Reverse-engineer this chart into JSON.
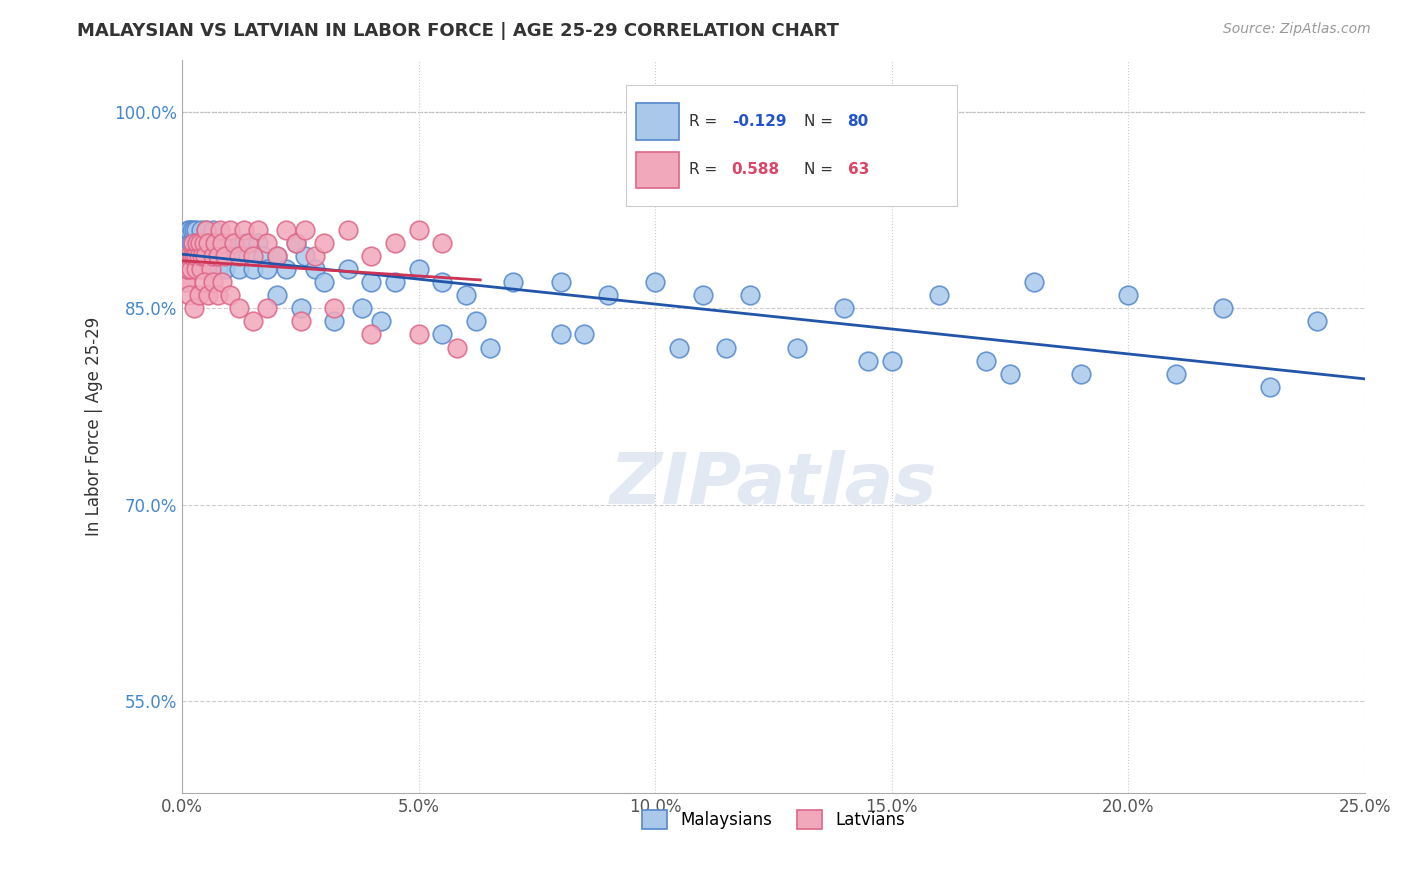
{
  "title": "MALAYSIAN VS LATVIAN IN LABOR FORCE | AGE 25-29 CORRELATION CHART",
  "source": "Source: ZipAtlas.com",
  "ylabel": "In Labor Force | Age 25-29",
  "xlim": [
    0.0,
    25.0
  ],
  "ylim": [
    48.0,
    104.0
  ],
  "xticks": [
    0.0,
    5.0,
    10.0,
    15.0,
    20.0,
    25.0
  ],
  "yticks": [
    55.0,
    70.0,
    85.0,
    100.0
  ],
  "xtick_labels": [
    "0.0%",
    "5.0%",
    "10.0%",
    "15.0%",
    "20.0%",
    "25.0%"
  ],
  "ytick_labels": [
    "55.0%",
    "70.0%",
    "85.0%",
    "100.0%"
  ],
  "top_dotted_y": 100.0,
  "malaysian_color": "#aac9ea",
  "latvian_color": "#f2a8bb",
  "malaysian_edge": "#5588cc",
  "latvian_edge": "#dd6688",
  "trend_blue": "#2255aa",
  "trend_pink": "#cc3355",
  "R_malaysian": -0.129,
  "N_malaysian": 80,
  "R_latvian": 0.588,
  "N_latvian": 63,
  "legend_labels": [
    "Malaysians",
    "Latvians"
  ],
  "watermark": "ZIPatlas",
  "malaysian_x": [
    0.05,
    0.08,
    0.1,
    0.12,
    0.15,
    0.18,
    0.2,
    0.22,
    0.25,
    0.28,
    0.3,
    0.32,
    0.35,
    0.38,
    0.4,
    0.42,
    0.45,
    0.48,
    0.5,
    0.55,
    0.6,
    0.65,
    0.7,
    0.75,
    0.8,
    0.85,
    0.9,
    1.0,
    1.1,
    1.2,
    1.3,
    1.4,
    1.5,
    1.6,
    1.7,
    1.8,
    2.0,
    2.2,
    2.4,
    2.6,
    2.8,
    3.0,
    3.5,
    4.0,
    4.5,
    5.0,
    5.5,
    6.0,
    7.0,
    8.0,
    9.0,
    10.0,
    11.0,
    12.0,
    14.0,
    16.0,
    18.0,
    20.0,
    22.0,
    24.0,
    2.5,
    3.2,
    4.2,
    5.5,
    6.5,
    8.5,
    10.5,
    13.0,
    15.0,
    17.0,
    19.0,
    21.0,
    23.0,
    2.0,
    3.8,
    6.2,
    8.0,
    11.5,
    14.5,
    17.5
  ],
  "malaysian_y": [
    88,
    89,
    90,
    91,
    91,
    90,
    91,
    90,
    91,
    90,
    91,
    90,
    90,
    89,
    91,
    90,
    88,
    90,
    91,
    89,
    90,
    91,
    89,
    88,
    90,
    89,
    88,
    90,
    89,
    88,
    90,
    89,
    88,
    90,
    89,
    88,
    89,
    88,
    90,
    89,
    88,
    87,
    88,
    87,
    87,
    88,
    87,
    86,
    87,
    87,
    86,
    87,
    86,
    86,
    85,
    86,
    87,
    86,
    85,
    84,
    85,
    84,
    84,
    83,
    82,
    83,
    82,
    82,
    81,
    81,
    80,
    80,
    79,
    86,
    85,
    84,
    83,
    82,
    81,
    80
  ],
  "latvian_x": [
    0.05,
    0.08,
    0.1,
    0.12,
    0.15,
    0.18,
    0.2,
    0.22,
    0.25,
    0.28,
    0.3,
    0.32,
    0.35,
    0.38,
    0.4,
    0.42,
    0.45,
    0.48,
    0.5,
    0.55,
    0.6,
    0.65,
    0.7,
    0.75,
    0.8,
    0.85,
    0.9,
    1.0,
    1.1,
    1.2,
    1.3,
    1.4,
    1.5,
    1.6,
    1.8,
    2.0,
    2.2,
    2.4,
    2.6,
    2.8,
    3.0,
    3.5,
    4.0,
    4.5,
    5.0,
    5.5,
    0.15,
    0.25,
    0.35,
    0.45,
    0.55,
    0.65,
    0.75,
    0.85,
    1.0,
    1.2,
    1.5,
    1.8,
    2.5,
    3.2,
    4.0,
    5.0,
    5.8
  ],
  "latvian_y": [
    87,
    87,
    88,
    88,
    89,
    88,
    89,
    90,
    89,
    88,
    89,
    90,
    89,
    90,
    88,
    89,
    90,
    89,
    91,
    90,
    88,
    89,
    90,
    89,
    91,
    90,
    89,
    91,
    90,
    89,
    91,
    90,
    89,
    91,
    90,
    89,
    91,
    90,
    91,
    89,
    90,
    91,
    89,
    90,
    91,
    90,
    86,
    85,
    86,
    87,
    86,
    87,
    86,
    87,
    86,
    85,
    84,
    85,
    84,
    85,
    83,
    83,
    82
  ]
}
